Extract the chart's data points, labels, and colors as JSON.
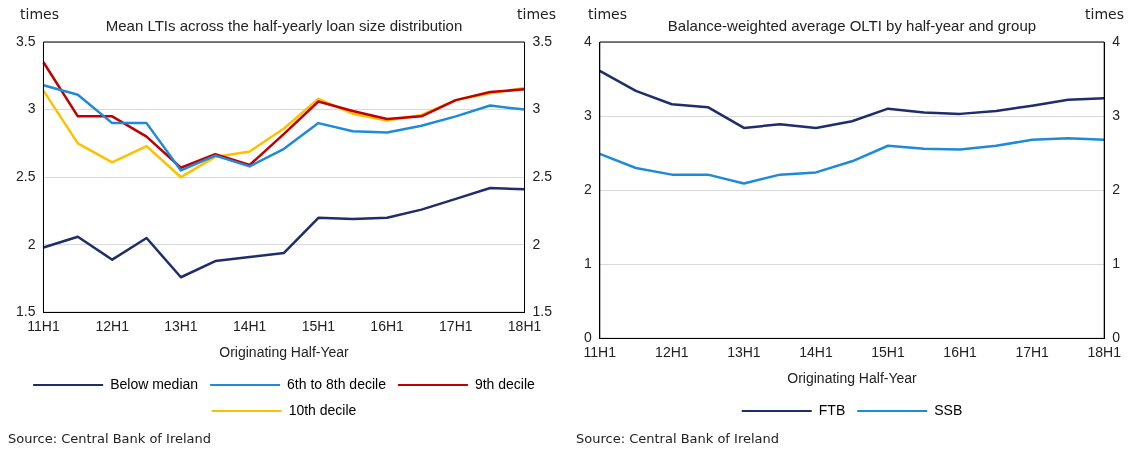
{
  "chart_data": [
    {
      "type": "line",
      "title": "Mean LTIs across the half-yearly loan size distribution",
      "xlabel": "Originating Half-Year",
      "ylabel": "times",
      "y2label": "times",
      "categories": [
        "11H1",
        null,
        "12H1",
        null,
        "13H1",
        null,
        "14H1",
        null,
        "15H1",
        null,
        "16H1",
        null,
        "17H1",
        null,
        "18H1"
      ],
      "series": [
        {
          "name": "Below median",
          "color": "#1f2d6b",
          "values": [
            1.98,
            2.06,
            1.89,
            2.05,
            1.76,
            1.88,
            1.91,
            1.94,
            2.2,
            2.19,
            2.2,
            2.26,
            2.34,
            2.42,
            2.41
          ]
        },
        {
          "name": "6th to 8th decile",
          "color": "#1f8ad8",
          "values": [
            3.18,
            3.11,
            2.9,
            2.9,
            2.55,
            2.66,
            2.58,
            2.71,
            2.9,
            2.84,
            2.83,
            2.88,
            2.95,
            3.03,
            3.0
          ]
        },
        {
          "name": "9th decile",
          "color": "#c00000",
          "values": [
            3.35,
            2.95,
            2.95,
            2.8,
            2.57,
            2.67,
            2.59,
            2.82,
            3.06,
            2.99,
            2.93,
            2.95,
            3.07,
            3.13,
            3.15
          ]
        },
        {
          "name": "10th decile",
          "color": "#ffc000",
          "values": [
            3.14,
            2.75,
            2.61,
            2.73,
            2.5,
            2.65,
            2.69,
            2.86,
            3.08,
            2.97,
            2.92,
            2.96,
            3.07,
            3.12,
            3.16
          ]
        }
      ],
      "ylim": [
        1.5,
        3.5
      ],
      "yticks": [
        1.5,
        2,
        2.5,
        3,
        3.5
      ],
      "y2lim": [
        1.5,
        3.5
      ],
      "y2ticks": [
        1.5,
        2,
        2.5,
        3,
        3.5
      ],
      "grid": "y",
      "legend": "bottom",
      "marker": "none",
      "line_style": "solid",
      "annotations": [
        "Source: Central Bank of Ireland"
      ]
    },
    {
      "type": "line",
      "title": "Balance-weighted average OLTI by half-year and group",
      "xlabel": "Originating Half-Year",
      "ylabel": "times",
      "y2label": "times",
      "categories": [
        "11H1",
        null,
        "12H1",
        null,
        "13H1",
        null,
        "14H1",
        null,
        "15H1",
        null,
        "16H1",
        null,
        "17H1",
        null,
        "18H1"
      ],
      "series": [
        {
          "name": "FTB",
          "color": "#1f2d6b",
          "values": [
            3.61,
            3.34,
            3.16,
            3.12,
            2.84,
            2.89,
            2.84,
            2.93,
            3.1,
            3.05,
            3.03,
            3.07,
            3.14,
            3.22,
            3.24
          ]
        },
        {
          "name": "SSB",
          "color": "#1f8ad8",
          "values": [
            2.49,
            2.3,
            2.21,
            2.21,
            2.09,
            2.21,
            2.24,
            2.39,
            2.6,
            2.56,
            2.55,
            2.6,
            2.68,
            2.7,
            2.68
          ]
        }
      ],
      "ylim": [
        0,
        4
      ],
      "yticks": [
        0,
        1,
        2,
        3,
        4
      ],
      "y2lim": [
        0,
        4
      ],
      "y2ticks": [
        0,
        1,
        2,
        3,
        4
      ],
      "grid": "y",
      "legend": "bottom",
      "marker": "none",
      "line_style": "solid",
      "annotations": [
        "Source: Central Bank of Ireland"
      ]
    }
  ]
}
